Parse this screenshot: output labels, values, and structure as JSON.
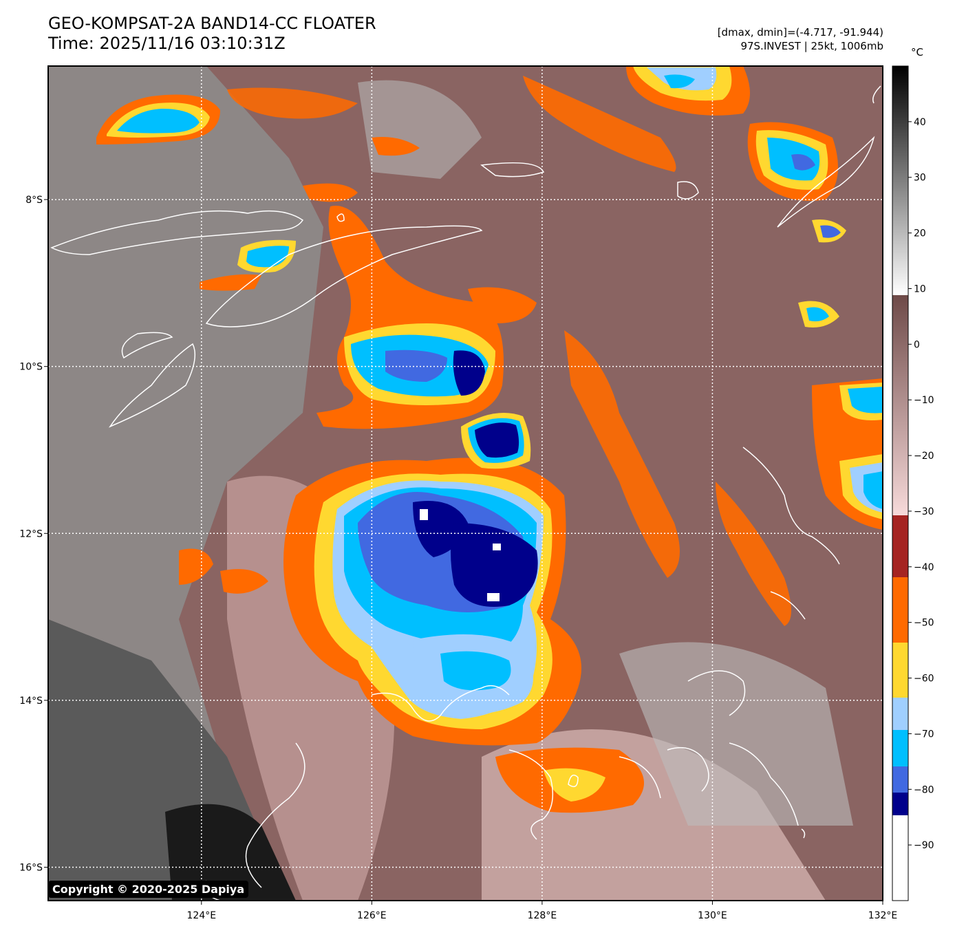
{
  "header": {
    "title_line1": "GEO-KOMPSAT-2A BAND14-CC FLOATER",
    "title_line2": "Time: 2025/11/16 03:10:31Z",
    "meta_line1": "[dmax, dmin]=(-4.717, -91.944)",
    "meta_line2": "97S.INVEST | 25kt, 1006mb"
  },
  "map": {
    "lon_range": [
      122.2,
      132.0
    ],
    "lat_range": [
      -16.4,
      -6.4
    ],
    "lon_ticks": [
      {
        "value": 124,
        "label": "124°E"
      },
      {
        "value": 126,
        "label": "126°E"
      },
      {
        "value": 128,
        "label": "128°E"
      },
      {
        "value": 130,
        "label": "130°E"
      },
      {
        "value": 132,
        "label": "132°E"
      }
    ],
    "lat_ticks": [
      {
        "value": -8,
        "label": "8°S"
      },
      {
        "value": -10,
        "label": "10°S"
      },
      {
        "value": -12,
        "label": "12°S"
      },
      {
        "value": -14,
        "label": "14°S"
      },
      {
        "value": -16,
        "label": "16°S"
      }
    ],
    "gridlines": "dotted white"
  },
  "colorbar": {
    "unit": "°C",
    "range": [
      -100,
      50
    ],
    "ticks": [
      {
        "value": 40,
        "label": "40"
      },
      {
        "value": 30,
        "label": "30"
      },
      {
        "value": 20,
        "label": "20"
      },
      {
        "value": 10,
        "label": "10"
      },
      {
        "value": 0,
        "label": "0"
      },
      {
        "value": -10,
        "label": "−10"
      },
      {
        "value": -20,
        "label": "−20"
      },
      {
        "value": -30,
        "label": "−30"
      },
      {
        "value": -40,
        "label": "−40"
      },
      {
        "value": -50,
        "label": "−50"
      },
      {
        "value": -60,
        "label": "−60"
      },
      {
        "value": -70,
        "label": "−70"
      },
      {
        "value": -80,
        "label": "−80"
      },
      {
        "value": -90,
        "label": "−90"
      }
    ],
    "colors": {
      "below_-88": "#ffffff",
      "-88_-84": "#00008b",
      "-84_-80": "#4169e1",
      "-80_-73": "#00bfff",
      "-73_-66": "#a0cfff",
      "-66_-56": "#ffd830",
      "-56_-45": "#ff6a00",
      "-45_-34": "#a52422",
      "-34_8": [
        "#f7dada",
        "#6e4a48"
      ],
      "8_50": [
        "#ffffff",
        "#000000"
      ]
    }
  },
  "copyright": "Copyright © 2020-2025 Dapiya"
}
